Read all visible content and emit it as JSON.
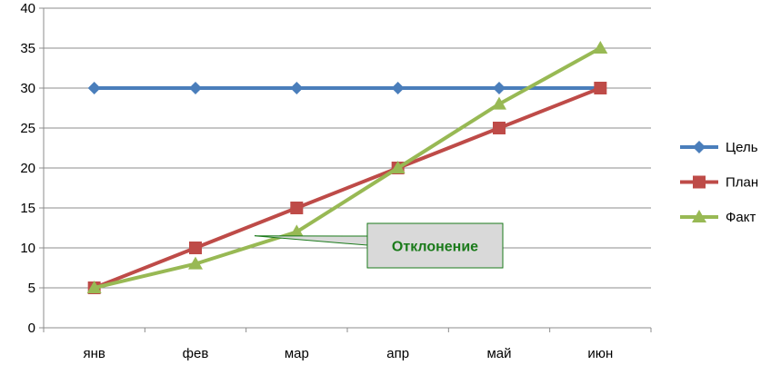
{
  "chart_data": {
    "type": "line",
    "title": "",
    "xlabel": "",
    "ylabel": "",
    "categories": [
      "янв",
      "фев",
      "мар",
      "апр",
      "май",
      "июн"
    ],
    "ylim": [
      0,
      40
    ],
    "yticks": [
      "0",
      "5",
      "10",
      "15",
      "20",
      "25",
      "30",
      "35",
      "40"
    ],
    "grid": true,
    "legend_position": "right",
    "series": [
      {
        "name": "Цель",
        "marker": "diamond",
        "color": "#4a7ebb",
        "values": [
          30,
          30,
          30,
          30,
          30,
          30
        ]
      },
      {
        "name": "План",
        "marker": "square",
        "color": "#be4b48",
        "values": [
          5,
          10,
          15,
          20,
          25,
          30
        ]
      },
      {
        "name": "Факт",
        "marker": "triangle",
        "color": "#98b954",
        "values": [
          5,
          8,
          12,
          20,
          28,
          35
        ]
      }
    ],
    "annotations": [
      {
        "text": "Отклонение",
        "target_category": "фев",
        "target_value": 11.5
      }
    ]
  }
}
